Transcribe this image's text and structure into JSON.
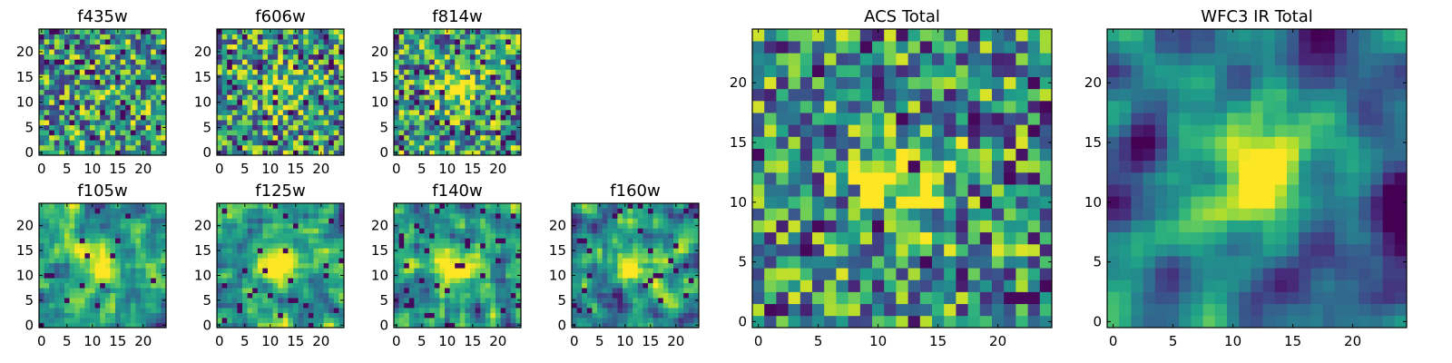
{
  "chart_data": [
    {
      "id": "f435w",
      "type": "heatmap",
      "title": "f435w",
      "size": 25,
      "seed": 11,
      "blob": 0.1,
      "blur": 0,
      "noise": 1.0,
      "dark": 0.06,
      "bias": 0.55,
      "xticks": [
        "0",
        "5",
        "10",
        "15",
        "20"
      ],
      "yticks": [
        "0",
        "5",
        "10",
        "15",
        "20"
      ]
    },
    {
      "id": "f606w",
      "type": "heatmap",
      "title": "f606w",
      "size": 25,
      "seed": 23,
      "blob": 0.35,
      "blur": 0,
      "noise": 1.0,
      "dark": 0.05,
      "bias": 0.55,
      "xticks": [
        "0",
        "5",
        "10",
        "15",
        "20"
      ],
      "yticks": [
        "0",
        "5",
        "10",
        "15",
        "20"
      ]
    },
    {
      "id": "f814w",
      "type": "heatmap",
      "title": "f814w",
      "size": 25,
      "seed": 37,
      "blob": 0.45,
      "blur": 0,
      "noise": 1.0,
      "dark": 0.05,
      "bias": 0.55,
      "xticks": [
        "0",
        "5",
        "10",
        "15",
        "20"
      ],
      "yticks": [
        "0",
        "5",
        "10",
        "15",
        "20"
      ]
    },
    {
      "id": "f105w",
      "type": "heatmap",
      "title": "f105w",
      "size": 25,
      "seed": 41,
      "blob": 0.55,
      "blur": 1,
      "noise": 1.0,
      "dark": 0.03,
      "bias": 0.55,
      "xticks": [
        "0",
        "5",
        "10",
        "15",
        "20"
      ],
      "yticks": [
        "0",
        "5",
        "10",
        "15",
        "20"
      ]
    },
    {
      "id": "f125w",
      "type": "heatmap",
      "title": "f125w",
      "size": 25,
      "seed": 53,
      "blob": 0.6,
      "blur": 1,
      "noise": 1.0,
      "dark": 0.03,
      "bias": 0.55,
      "xticks": [
        "0",
        "5",
        "10",
        "15",
        "20"
      ],
      "yticks": [
        "0",
        "5",
        "10",
        "15",
        "20"
      ]
    },
    {
      "id": "f140w",
      "type": "heatmap",
      "title": "f140w",
      "size": 25,
      "seed": 67,
      "blob": 0.55,
      "blur": 1,
      "noise": 1.0,
      "dark": 0.05,
      "bias": 0.5,
      "xticks": [
        "0",
        "5",
        "10",
        "15",
        "20"
      ],
      "yticks": [
        "0",
        "5",
        "10",
        "15",
        "20"
      ]
    },
    {
      "id": "f160w",
      "type": "heatmap",
      "title": "f160w",
      "size": 25,
      "seed": 79,
      "blob": 0.6,
      "blur": 1,
      "noise": 1.0,
      "dark": 0.04,
      "bias": 0.5,
      "xticks": [
        "0",
        "5",
        "10",
        "15",
        "20"
      ],
      "yticks": [
        "0",
        "5",
        "10",
        "15",
        "20"
      ]
    },
    {
      "id": "acs",
      "type": "heatmap",
      "title": "ACS Total",
      "size": 25,
      "seed": 97,
      "blob": 0.55,
      "blur": 0,
      "noise": 0.8,
      "dark": 0.03,
      "bias": 0.5,
      "xticks": [
        "0",
        "5",
        "10",
        "15",
        "20"
      ],
      "yticks": [
        "0",
        "5",
        "10",
        "15",
        "20"
      ]
    },
    {
      "id": "wfc3",
      "type": "heatmap",
      "title": "WFC3 IR Total",
      "size": 25,
      "seed": 113,
      "blob": 0.95,
      "blur": 2,
      "noise": 0.6,
      "dark": 0.0,
      "bias": 0.3,
      "xticks": [
        "0",
        "5",
        "10",
        "15",
        "20"
      ],
      "yticks": [
        "0",
        "5",
        "10",
        "15",
        "20"
      ]
    }
  ],
  "colormap": "viridis",
  "colors": {
    "cmap_low": "#440154",
    "cmap_mid": "#21918c",
    "cmap_high": "#fde725",
    "frame": "#000000"
  }
}
